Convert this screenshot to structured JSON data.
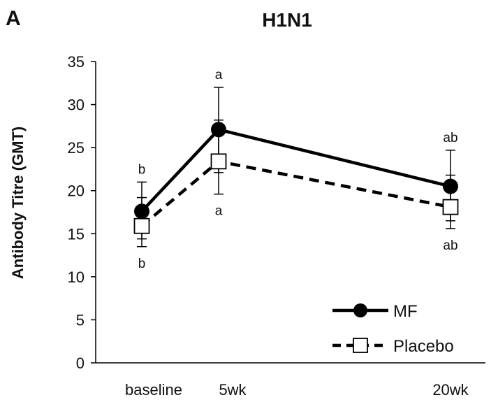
{
  "panel_label": "A",
  "chart_data": {
    "type": "line",
    "title": "H1N1",
    "xlabel": "",
    "ylabel": "Antibody Titre (GMT)",
    "categories": [
      "baseline",
      "5wk",
      "20wk"
    ],
    "ylim": [
      0,
      35
    ],
    "yticks": [
      0,
      5,
      10,
      15,
      20,
      25,
      30,
      35
    ],
    "grid": false,
    "legend_position": "bottom-right",
    "series": [
      {
        "name": "MF",
        "marker": "filled-circle",
        "line": "solid",
        "color": "#000000",
        "values": [
          17.6,
          27.1,
          20.5
        ],
        "error_upper": [
          21.0,
          32.0,
          24.7
        ],
        "error_lower": [
          14.4,
          22.1,
          16.5
        ],
        "annotations": [
          "b",
          "a",
          "ab"
        ]
      },
      {
        "name": "Placebo",
        "marker": "open-square",
        "line": "dashed",
        "color": "#000000",
        "values": [
          15.9,
          23.4,
          18.1
        ],
        "error_upper": [
          19.2,
          28.2,
          21.8
        ],
        "error_lower": [
          13.5,
          19.6,
          15.6
        ],
        "annotations": [
          "b",
          "a",
          "ab"
        ]
      }
    ]
  }
}
